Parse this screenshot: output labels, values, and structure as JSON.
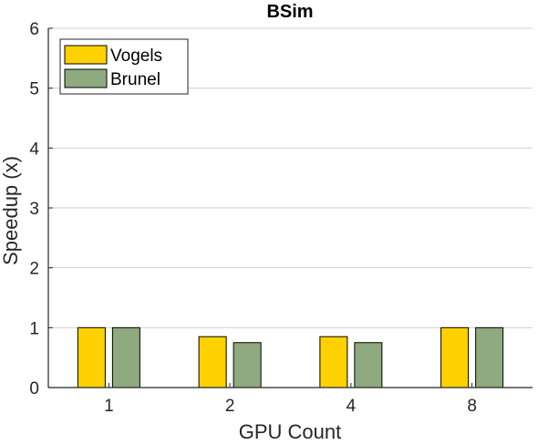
{
  "chart_data": {
    "type": "bar",
    "title": "BSim",
    "xlabel": "GPU Count",
    "ylabel": "Speedup (x)",
    "categories": [
      "1",
      "2",
      "4",
      "8"
    ],
    "series": [
      {
        "name": "Vogels",
        "values": [
          1.0,
          0.85,
          0.85,
          1.0
        ],
        "color": "#FFD100"
      },
      {
        "name": "Brunel",
        "values": [
          1.0,
          0.75,
          0.75,
          1.0
        ],
        "color": "#8FAA7E"
      }
    ],
    "ylim": [
      0,
      6
    ],
    "yticks": [
      "0",
      "1",
      "2",
      "3",
      "4",
      "5",
      "6"
    ],
    "grid": true,
    "legend_position": "top-left",
    "colors": {
      "axis": "#262626",
      "grid": "#d0d0d0",
      "bar_edge": "#000000"
    }
  }
}
